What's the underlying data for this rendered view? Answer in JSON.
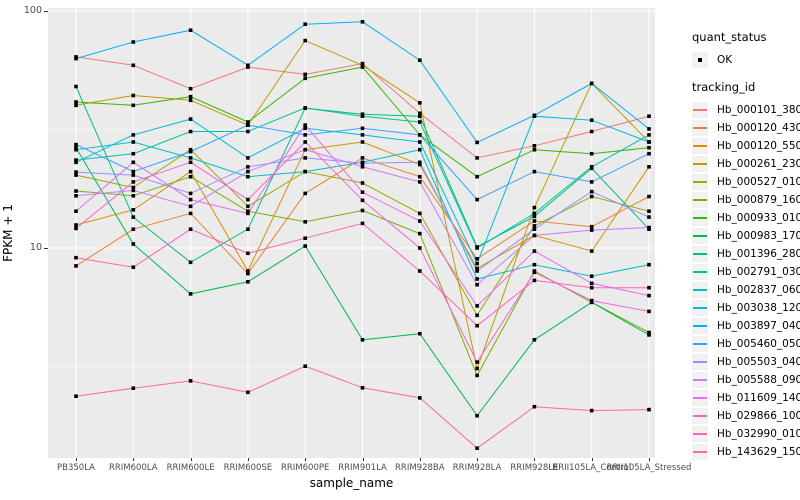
{
  "chart_data": {
    "type": "line",
    "title": "",
    "xlabel": "sample_name",
    "ylabel": "FPKM + 1",
    "yscale": "log10",
    "ylim": [
      1.2,
      107
    ],
    "grid": true,
    "yticks": [
      {
        "label": "100",
        "value": 100
      },
      {
        "label": "10",
        "value": 10
      }
    ],
    "minor_gridlines": [
      31.62,
      3.162
    ],
    "categories": [
      "PB350LA",
      "RRIM600LA",
      "RRIM600LE",
      "RRIM600SE",
      "RRIM600PE",
      "RRIM901LA",
      "RRIM928BA",
      "RRIM928LA",
      "RRIM928LE",
      "RRII105LA_Control",
      "RRII105LA_Stressed"
    ],
    "legend": {
      "position": "right",
      "quant_status_title": "quant_status",
      "quant_status_items": [
        {
          "label": "OK",
          "marker": "point"
        }
      ],
      "tracking_id_title": "tracking_id"
    },
    "point_marker": {
      "shape": "square",
      "color": "#000000"
    },
    "series": [
      {
        "name": "Hb_000101_380",
        "color": "#F8766D",
        "values": [
          64,
          59,
          47,
          58,
          54,
          60,
          37,
          24,
          27,
          31,
          36
        ]
      },
      {
        "name": "Hb_000120_430",
        "color": "#EA8331",
        "values": [
          8.4,
          12,
          14,
          7.8,
          17,
          24,
          20,
          9.0,
          13,
          12.3,
          16.5
        ]
      },
      {
        "name": "Hb_000120_550",
        "color": "#D89000",
        "values": [
          12.5,
          14.5,
          21,
          8.0,
          26,
          28,
          22.5,
          8.2,
          11.3,
          9.7,
          22
        ]
      },
      {
        "name": "Hb_000261_230",
        "color": "#C09B00",
        "values": [
          40,
          44,
          42,
          33,
          75,
          59,
          41,
          3.1,
          14.8,
          49.5,
          28
        ]
      },
      {
        "name": "Hb_000527_010",
        "color": "#A3A500",
        "values": [
          20.3,
          18,
          26,
          15,
          21,
          18.8,
          14,
          5.2,
          12.4,
          16.5,
          14.3
        ]
      },
      {
        "name": "Hb_000879_160",
        "color": "#7CAE00",
        "values": [
          17.4,
          16.6,
          20,
          14.3,
          12.9,
          14.4,
          11.5,
          2.9,
          8.0,
          5.9,
          4.4
        ]
      },
      {
        "name": "Hb_000933_010",
        "color": "#39B600",
        "values": [
          41.3,
          40,
          43.5,
          34,
          52,
          58,
          30,
          20,
          26,
          25,
          26.5
        ]
      },
      {
        "name": "Hb_000983_170",
        "color": "#00BB4E",
        "values": [
          26.5,
          10.4,
          6.4,
          7.2,
          10.2,
          4.1,
          4.35,
          1.96,
          4.1,
          5.9,
          4.3
        ]
      },
      {
        "name": "Hb_001396_280",
        "color": "#00BF7D",
        "values": [
          48,
          13.5,
          8.7,
          12,
          38.9,
          36.7,
          36,
          10.1,
          13.6,
          21.7,
          12
        ]
      },
      {
        "name": "Hb_002791_030",
        "color": "#00C1A3",
        "values": [
          23.5,
          25,
          31,
          31,
          39,
          36,
          34,
          10,
          14,
          22,
          30
        ]
      },
      {
        "name": "Hb_002837_060",
        "color": "#00BFC4",
        "values": [
          26,
          28,
          24,
          20,
          21,
          23,
          26,
          7.4,
          8.5,
          7.6,
          8.5
        ]
      },
      {
        "name": "Hb_003038_120",
        "color": "#00BAE0",
        "values": [
          23,
          30,
          35,
          24,
          32,
          30,
          28,
          8.6,
          36,
          34.6,
          28
        ]
      },
      {
        "name": "Hb_003897_040",
        "color": "#00B0F6",
        "values": [
          63,
          74,
          83,
          59,
          88,
          90,
          62,
          27.9,
          36.3,
          49.5,
          31.8
        ]
      },
      {
        "name": "Hb_005460_050",
        "color": "#35A2FF",
        "values": [
          27.3,
          21,
          25.5,
          33,
          30,
          32,
          30,
          16,
          21,
          19,
          25
        ]
      },
      {
        "name": "Hb_005503_040",
        "color": "#9590FF",
        "values": [
          20.9,
          20.3,
          17,
          22,
          24,
          22.8,
          23,
          8.0,
          12,
          17.3,
          13.5
        ]
      },
      {
        "name": "Hb_005588_090",
        "color": "#C77CFF",
        "values": [
          16.6,
          17.5,
          15,
          21,
          26,
          22,
          19,
          7.0,
          11.3,
          11.9,
          12.2
        ]
      },
      {
        "name": "Hb_011609_140",
        "color": "#E76BF3",
        "values": [
          14.3,
          23,
          16,
          14,
          33,
          17.2,
          13,
          5.7,
          9.7,
          7.1,
          6.3
        ]
      },
      {
        "name": "Hb_029866_100",
        "color": "#FA62DB",
        "values": [
          12.1,
          19,
          23,
          16,
          28,
          15.9,
          10,
          3.3,
          7.9,
          6.0,
          5.4
        ]
      },
      {
        "name": "Hb_032990_010",
        "color": "#FF62BC",
        "values": [
          9.1,
          8.3,
          12,
          9.5,
          11,
          12.7,
          8,
          4.7,
          7.3,
          6.8,
          6.8
        ]
      },
      {
        "name": "Hb_143629_150",
        "color": "#FF6A98",
        "values": [
          2.37,
          2.56,
          2.75,
          2.46,
          3.17,
          2.57,
          2.33,
          1.43,
          2.14,
          2.06,
          2.08
        ]
      }
    ]
  },
  "colors": {
    "panel_background": "#EBEBEB",
    "gridline": "#FFFFFF",
    "point": "#000000",
    "legend_key_background": "#F2F2F2",
    "tick_text": "#4D4D4D",
    "tick_mark": "#333333"
  }
}
